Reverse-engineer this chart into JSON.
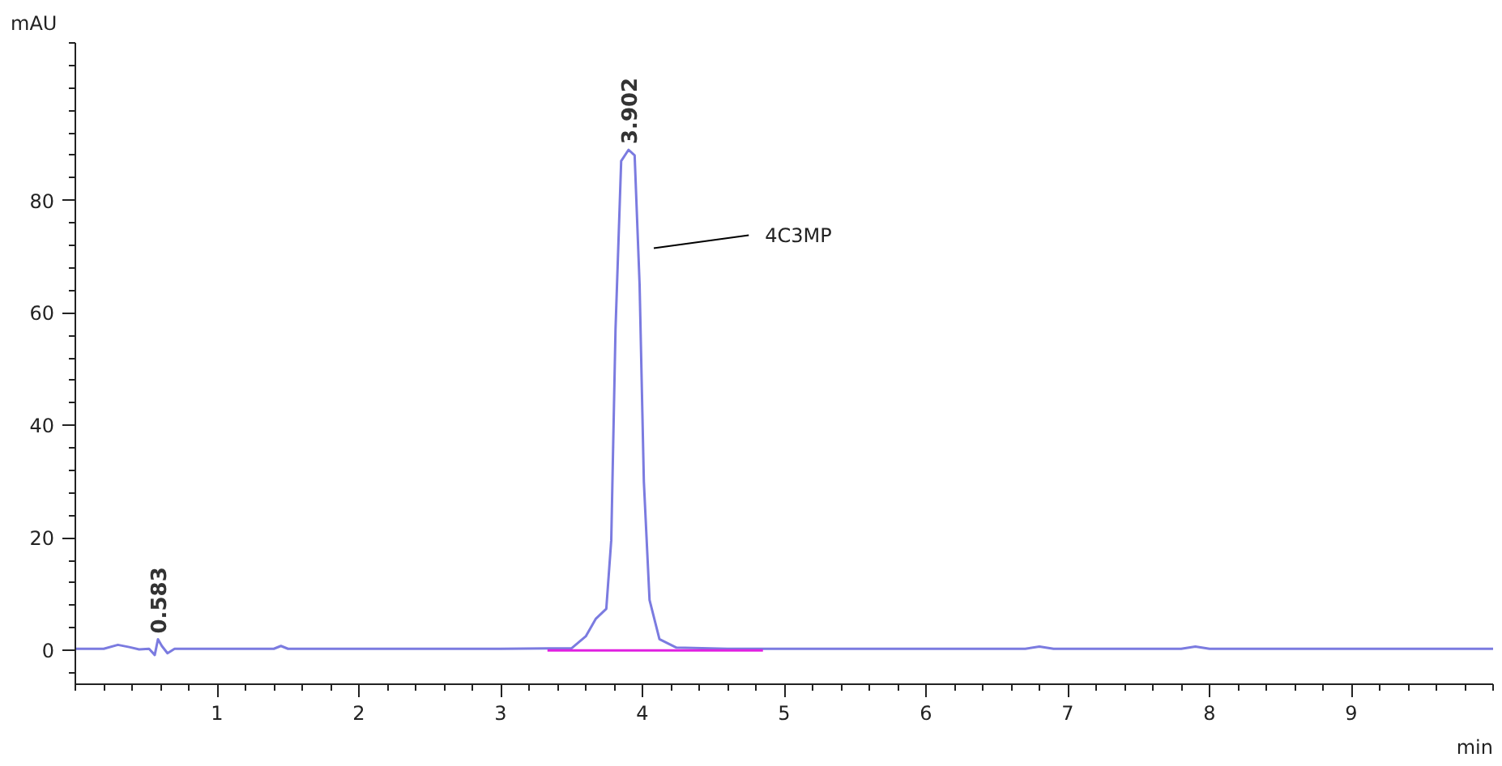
{
  "chart_data": {
    "type": "line",
    "xlabel": "min",
    "ylabel": "mAU",
    "xlim": [
      0,
      10
    ],
    "ylim": [
      -6,
      108
    ],
    "xticks": [
      1,
      2,
      3,
      4,
      5,
      6,
      7,
      8,
      9
    ],
    "yticks": [
      0,
      20,
      40,
      60,
      80
    ],
    "grid": false,
    "marker": "none",
    "line_style": "solid",
    "series": [
      {
        "color": "#7b7be0",
        "x": [
          0,
          0.2,
          0.3,
          0.38,
          0.45,
          0.52,
          0.56,
          0.583,
          0.61,
          0.65,
          0.7,
          1.0,
          1.4,
          1.45,
          1.5,
          2.0,
          3.0,
          3.5,
          3.6,
          3.67,
          3.745,
          3.78,
          3.81,
          3.85,
          3.902,
          3.945,
          3.98,
          4.01,
          4.05,
          4.12,
          4.24,
          4.6,
          5.0,
          6.0,
          6.7,
          6.8,
          6.9,
          7.8,
          7.9,
          8.0,
          9.0,
          10.0
        ],
        "values": [
          0.3,
          0.3,
          1.0,
          0.6,
          0.2,
          0.3,
          -0.8,
          2.0,
          0.8,
          -0.5,
          0.3,
          0.3,
          0.3,
          0.8,
          0.3,
          0.3,
          0.3,
          0.4,
          2.5,
          5.6,
          7.4,
          19.6,
          57,
          87,
          89,
          88,
          65,
          30,
          9,
          2,
          0.5,
          0.3,
          0.3,
          0.3,
          0.3,
          0.7,
          0.3,
          0.3,
          0.7,
          0.3,
          0.3,
          0.3
        ]
      },
      {
        "color": "#e020e0",
        "x": [
          3.33,
          4.85
        ],
        "values": [
          0,
          0
        ]
      }
    ],
    "annotations": [
      {
        "text": "3.902",
        "x": 3.902,
        "y": 90
      },
      {
        "text": "0.583",
        "x": 0.583,
        "y": 3
      },
      "4C3MP"
    ]
  }
}
